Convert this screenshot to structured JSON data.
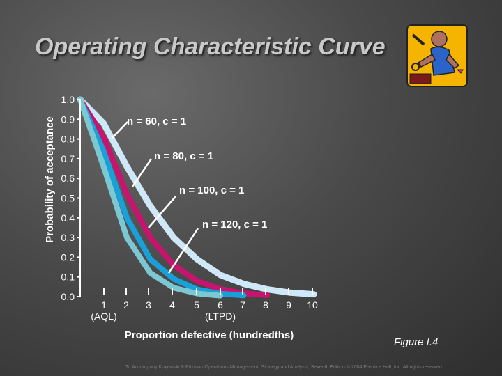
{
  "slide": {
    "title": "Operating Characteristic Curve",
    "figure_label": "Figure I.4",
    "footer": "To Accompany Krajewski & Ritzman Operations Management: Strategy and Analysis, Seventh Edition © 2004 Prentice Hall, Inc. All rights reserved."
  },
  "chart_data": {
    "type": "line",
    "title": "Operating Characteristic Curve",
    "xlabel": "Proportion defective (hundredths)",
    "ylabel": "Probability of acceptance",
    "xlim": [
      0,
      10
    ],
    "ylim": [
      0,
      1
    ],
    "y_ticks": [
      "0.0",
      "0.1",
      "0.2",
      "0.3",
      "0.4",
      "0.5",
      "0.6",
      "0.7",
      "0.8",
      "0.9",
      "1.0"
    ],
    "x_ticks": [
      "1",
      "2",
      "3",
      "4",
      "5",
      "6",
      "7",
      "8",
      "9",
      "10"
    ],
    "x_tick_sublabels": {
      "1": "(AQL)",
      "6": "(LTPD)"
    },
    "grid": false,
    "series": [
      {
        "name": "n = 60, c = 1",
        "color": "#cfe8f8",
        "x": [
          0,
          1,
          2,
          3,
          4,
          5,
          6,
          7,
          8,
          9,
          10
        ],
        "y": [
          1.0,
          0.88,
          0.66,
          0.46,
          0.3,
          0.19,
          0.11,
          0.065,
          0.037,
          0.02,
          0.012
        ]
      },
      {
        "name": "n = 80, c = 1",
        "color": "#c8146e",
        "x": [
          0,
          1,
          2,
          3,
          4,
          5,
          6,
          7,
          8
        ],
        "y": [
          1.0,
          0.81,
          0.52,
          0.3,
          0.16,
          0.08,
          0.038,
          0.017,
          0.007
        ]
      },
      {
        "name": "n = 100, c = 1",
        "color": "#1aa0d8",
        "x": [
          0,
          1,
          2,
          3,
          4,
          5,
          6,
          7
        ],
        "y": [
          1.0,
          0.74,
          0.4,
          0.19,
          0.09,
          0.037,
          0.015,
          0.006
        ]
      },
      {
        "name": "n = 120, c = 1",
        "color": "#7cc8d2",
        "x": [
          0,
          1,
          2,
          3,
          4,
          5,
          6
        ],
        "y": [
          1.0,
          0.66,
          0.3,
          0.12,
          0.045,
          0.016,
          0.005
        ]
      }
    ]
  },
  "icons": {
    "clipart": "inspector-clipart-icon"
  }
}
